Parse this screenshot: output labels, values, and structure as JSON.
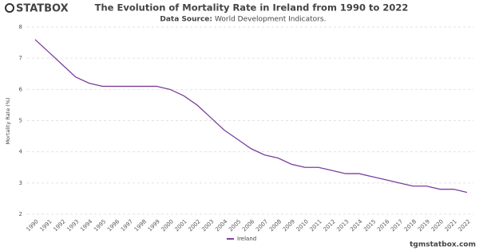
{
  "logo": "STATBOX",
  "site": "tgmstatbox.com",
  "chart_data": {
    "type": "line",
    "title": "The Evolution of Mortality Rate in Ireland from 1990 to 2022",
    "subtitle_label": "Data Source:",
    "subtitle": "World Development Indicators.",
    "y_label": "Mortality Rate (%)",
    "categories": [
      "1990",
      "1991",
      "1992",
      "1993",
      "1994",
      "1995",
      "1996",
      "1997",
      "1998",
      "1999",
      "2000",
      "2001",
      "2002",
      "2003",
      "2004",
      "2005",
      "2006",
      "2007",
      "2008",
      "2009",
      "2010",
      "2011",
      "2012",
      "2013",
      "2014",
      "2015",
      "2016",
      "2017",
      "2018",
      "2019",
      "2020",
      "2021",
      "2022"
    ],
    "series": [
      {
        "name": "Ireland",
        "color": "#7b3f9e",
        "values": [
          7.6,
          7.2,
          6.8,
          6.4,
          6.2,
          6.1,
          6.1,
          6.1,
          6.1,
          6.1,
          6.0,
          5.8,
          5.5,
          5.1,
          4.7,
          4.4,
          4.1,
          3.9,
          3.8,
          3.6,
          3.5,
          3.5,
          3.4,
          3.3,
          3.3,
          3.2,
          3.1,
          3.0,
          2.9,
          2.9,
          2.8,
          2.8,
          2.7
        ]
      }
    ],
    "ylim": [
      2,
      8
    ],
    "yticks": [
      2,
      3,
      4,
      5,
      6,
      7,
      8
    ],
    "grid": true,
    "legend": "bottom"
  }
}
